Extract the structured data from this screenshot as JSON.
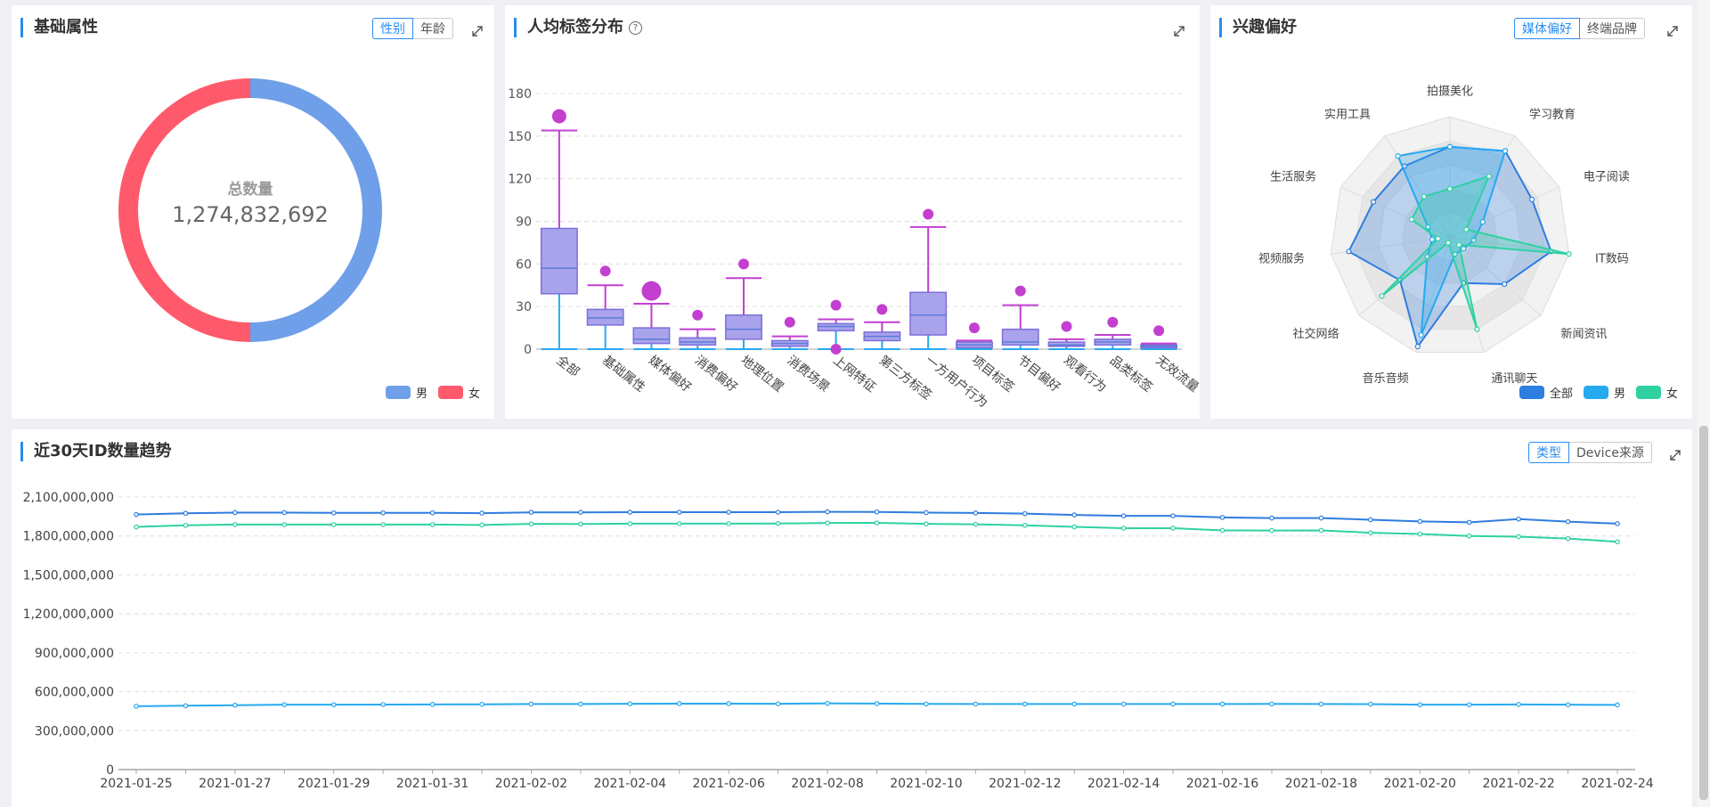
{
  "colors": {
    "accent": "#2a8cf0",
    "male_donut": "#6f9fe8",
    "female_donut": "#ff5a6b",
    "box_whisker": "#c23fd0",
    "box_fill": "#a9a3ec",
    "all_series": "#2e7de0",
    "male_series": "#27a9f0",
    "female_series": "#2fd1a3"
  },
  "basic": {
    "title": "基础属性",
    "tabs": [
      {
        "label": "性别",
        "active": true
      },
      {
        "label": "年龄",
        "active": false
      }
    ],
    "center_label": "总数量",
    "center_value": "1,274,832,692",
    "legend": [
      {
        "name": "男"
      },
      {
        "name": "女"
      }
    ]
  },
  "tags": {
    "title": "人均标签分布",
    "help_icon": "question-circle-icon"
  },
  "interest": {
    "title": "兴趣偏好",
    "tabs": [
      {
        "label": "媒体偏好",
        "active": true
      },
      {
        "label": "终端品牌",
        "active": false
      }
    ],
    "legend": [
      {
        "name": "全部"
      },
      {
        "name": "男"
      },
      {
        "name": "女"
      }
    ]
  },
  "trend": {
    "title": "近30天ID数量趋势",
    "tabs": [
      {
        "label": "类型",
        "active": true
      },
      {
        "label": "Device来源",
        "active": false
      }
    ]
  },
  "chart_data": [
    {
      "type": "pie",
      "style": "donut",
      "categories": [
        "男",
        "女"
      ],
      "values": [
        50,
        50
      ]
    },
    {
      "type": "boxplot",
      "categories": [
        "全部",
        "基础属性",
        "媒体偏好",
        "消费偏好",
        "地理位置",
        "消费场景",
        "上网特征",
        "第三方标签",
        "一方用户行为",
        "项目标签",
        "节目偏好",
        "观看行为",
        "品类标签",
        "无效流量"
      ],
      "boxes": [
        {
          "min": 0,
          "q1": 39,
          "median": 57,
          "q3": 85,
          "max": 154
        },
        {
          "min": 0,
          "q1": 17,
          "median": 22,
          "q3": 28,
          "max": 45
        },
        {
          "min": 0,
          "q1": 4,
          "median": 7,
          "q3": 15,
          "max": 32
        },
        {
          "min": 0,
          "q1": 3,
          "median": 5,
          "q3": 8,
          "max": 14
        },
        {
          "min": 0,
          "q1": 7,
          "median": 14,
          "q3": 24,
          "max": 50
        },
        {
          "min": 0,
          "q1": 2,
          "median": 4,
          "q3": 6,
          "max": 9
        },
        {
          "min": 0,
          "q1": 13,
          "median": 16,
          "q3": 18,
          "max": 21
        },
        {
          "min": 0,
          "q1": 6,
          "median": 9,
          "q3": 12,
          "max": 19
        },
        {
          "min": 0,
          "q1": 10,
          "median": 24,
          "q3": 40,
          "max": 86
        },
        {
          "min": 0,
          "q1": 1,
          "median": 3,
          "q3": 5,
          "max": 6
        },
        {
          "min": 0,
          "q1": 3,
          "median": 5,
          "q3": 14,
          "max": 31
        },
        {
          "min": 0,
          "q1": 2,
          "median": 3,
          "q3": 5,
          "max": 7
        },
        {
          "min": 0,
          "q1": 3,
          "median": 5,
          "q3": 7,
          "max": 10
        },
        {
          "min": 0,
          "q1": 1,
          "median": 2,
          "q3": 3,
          "max": 4
        }
      ],
      "outliers": [
        {
          "category": "全部",
          "value": 164
        },
        {
          "category": "基础属性",
          "value": 55
        },
        {
          "category": "媒体偏好",
          "value": 41
        },
        {
          "category": "消费偏好",
          "value": 24
        },
        {
          "category": "地理位置",
          "value": 60
        },
        {
          "category": "消费场景",
          "value": 19
        },
        {
          "category": "上网特征",
          "value": 31
        },
        {
          "category": "上网特征",
          "value": 0
        },
        {
          "category": "第三方标签",
          "value": 28
        },
        {
          "category": "一方用户行为",
          "value": 95
        },
        {
          "category": "项目标签",
          "value": 15
        },
        {
          "category": "节目偏好",
          "value": 41
        },
        {
          "category": "观看行为",
          "value": 16
        },
        {
          "category": "品类标签",
          "value": 19
        },
        {
          "category": "无效流量",
          "value": 13
        }
      ],
      "ylim": [
        0,
        180
      ],
      "yticks": [
        0,
        30,
        60,
        90,
        120,
        150,
        180
      ],
      "grid": true
    },
    {
      "type": "radar",
      "indicators": [
        "拍摄美化",
        "学习教育",
        "电子阅读",
        "IT数码",
        "新闻资讯",
        "通讯聊天",
        "音乐音频",
        "社交网络",
        "视频服务",
        "生活服务",
        "实用工具"
      ],
      "max": 100,
      "series": [
        {
          "name": "全部",
          "values": [
            75,
            85,
            75,
            85,
            60,
            40,
            95,
            55,
            85,
            70,
            70
          ]
        },
        {
          "name": "男",
          "values": [
            75,
            85,
            30,
            20,
            15,
            15,
            85,
            25,
            15,
            20,
            80
          ]
        },
        {
          "name": "女",
          "values": [
            40,
            60,
            15,
            100,
            10,
            80,
            5,
            75,
            10,
            35,
            40
          ]
        }
      ]
    },
    {
      "type": "line",
      "x": [
        "2021-01-25",
        "2021-01-26",
        "2021-01-27",
        "2021-01-28",
        "2021-01-29",
        "2021-01-30",
        "2021-01-31",
        "2021-02-01",
        "2021-02-02",
        "2021-02-03",
        "2021-02-04",
        "2021-02-05",
        "2021-02-06",
        "2021-02-07",
        "2021-02-08",
        "2021-02-09",
        "2021-02-10",
        "2021-02-11",
        "2021-02-12",
        "2021-02-13",
        "2021-02-14",
        "2021-02-15",
        "2021-02-16",
        "2021-02-17",
        "2021-02-18",
        "2021-02-19",
        "2021-02-20",
        "2021-02-21",
        "2021-02-22",
        "2021-02-23",
        "2021-02-24"
      ],
      "xticks": [
        "2021-01-25",
        "2021-01-27",
        "2021-01-29",
        "2021-01-31",
        "2021-02-02",
        "2021-02-04",
        "2021-02-06",
        "2021-02-08",
        "2021-02-10",
        "2021-02-12",
        "2021-02-14",
        "2021-02-16",
        "2021-02-18",
        "2021-02-20",
        "2021-02-22",
        "2021-02-24"
      ],
      "series": [
        {
          "name": "全部",
          "values": [
            1965000000,
            1975000000,
            1980000000,
            1980000000,
            1978000000,
            1978000000,
            1978000000,
            1976000000,
            1982000000,
            1982000000,
            1983000000,
            1983000000,
            1983000000,
            1983000000,
            1986000000,
            1985000000,
            1980000000,
            1977000000,
            1972000000,
            1962000000,
            1955000000,
            1955000000,
            1943000000,
            1938000000,
            1938000000,
            1925000000,
            1912000000,
            1905000000,
            1930000000,
            1910000000,
            1895000000
          ]
        },
        {
          "name": "男",
          "values": [
            488000000,
            492000000,
            496000000,
            500000000,
            500000000,
            501000000,
            502000000,
            503000000,
            505000000,
            505000000,
            507000000,
            508000000,
            508000000,
            507000000,
            510000000,
            509000000,
            506000000,
            505000000,
            505000000,
            505000000,
            505000000,
            505000000,
            505000000,
            506000000,
            505000000,
            504000000,
            500000000,
            500000000,
            502000000,
            500000000,
            498000000
          ]
        },
        {
          "name": "女",
          "values": [
            1870000000,
            1882000000,
            1888000000,
            1888000000,
            1888000000,
            1888000000,
            1888000000,
            1885000000,
            1893000000,
            1892000000,
            1895000000,
            1895000000,
            1895000000,
            1896000000,
            1900000000,
            1901000000,
            1893000000,
            1890000000,
            1882000000,
            1870000000,
            1860000000,
            1860000000,
            1843000000,
            1842000000,
            1843000000,
            1825000000,
            1815000000,
            1800000000,
            1795000000,
            1780000000,
            1755000000
          ]
        }
      ],
      "ylim": [
        0,
        2100000000
      ],
      "yticks": [
        "0",
        "300,000,000",
        "600,000,000",
        "900,000,000",
        "1,200,000,000",
        "1,500,000,000",
        "1,800,000,000",
        "2,100,000,000"
      ],
      "grid": true
    }
  ]
}
